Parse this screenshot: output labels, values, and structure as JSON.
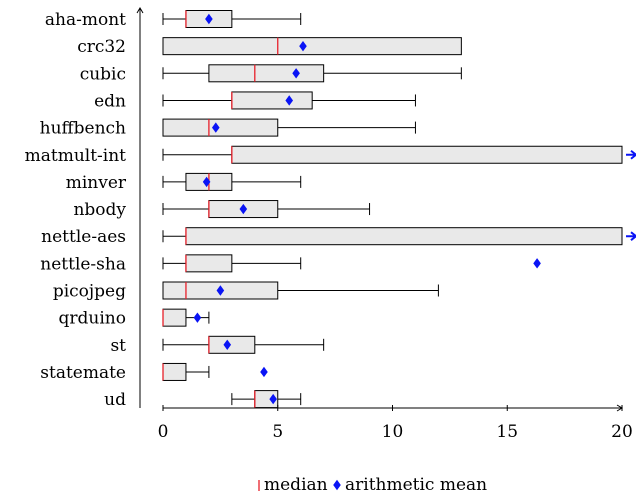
{
  "chart_data": {
    "type": "boxplot",
    "orientation": "horizontal",
    "xlim": [
      0,
      20
    ],
    "xticks": [
      0,
      5,
      10,
      15,
      20
    ],
    "legend": {
      "position": "bottom-center",
      "median_label": "median",
      "mean_label": "arithmetic mean",
      "median_color": "#e8202a",
      "mean_color": "#0a14f5"
    },
    "series": [
      {
        "name": "aha-mont",
        "min": 0,
        "q1": 1,
        "median": 1,
        "q3": 3,
        "max": 6,
        "mean": 2.0
      },
      {
        "name": "crc32",
        "min": 0,
        "q1": 0,
        "median": 5,
        "q3": 13,
        "max": 13,
        "mean": 6.1
      },
      {
        "name": "cubic",
        "min": 0,
        "q1": 2,
        "median": 4,
        "q3": 7,
        "max": 13,
        "mean": 5.8
      },
      {
        "name": "edn",
        "min": 0,
        "q1": 3,
        "median": 3,
        "q3": 6.5,
        "max": 11,
        "mean": 5.5
      },
      {
        "name": "huffbench",
        "min": 0,
        "q1": 0,
        "median": 2,
        "q3": 5,
        "max": 11,
        "mean": 2.3
      },
      {
        "name": "matmult-int",
        "min": 0,
        "q1": 3,
        "median": 3,
        "q3": 20,
        "max": 20,
        "mean": null,
        "mean_beyond_axis": true
      },
      {
        "name": "minver",
        "min": 0,
        "q1": 1,
        "median": 2,
        "q3": 3,
        "max": 6,
        "mean": 1.9
      },
      {
        "name": "nbody",
        "min": 0,
        "q1": 2,
        "median": 2,
        "q3": 5,
        "max": 9,
        "mean": 3.5
      },
      {
        "name": "nettle-aes",
        "min": 0,
        "q1": 1,
        "median": 1,
        "q3": 20,
        "max": 20,
        "mean": null,
        "mean_beyond_axis": true
      },
      {
        "name": "nettle-sha",
        "min": 0,
        "q1": 1,
        "median": 1,
        "q3": 3,
        "max": 6,
        "mean": 16.3
      },
      {
        "name": "picojpeg",
        "min": 0,
        "q1": 0,
        "median": 1,
        "q3": 5,
        "max": 12,
        "mean": 2.5
      },
      {
        "name": "qrduino",
        "min": 0,
        "q1": 0,
        "median": 0,
        "q3": 1,
        "max": 2,
        "mean": 1.5
      },
      {
        "name": "st",
        "min": 0,
        "q1": 2,
        "median": 2,
        "q3": 4,
        "max": 7,
        "mean": 2.8
      },
      {
        "name": "statemate",
        "min": 0,
        "q1": 0,
        "median": 0,
        "q3": 1,
        "max": 2,
        "mean": 4.4
      },
      {
        "name": "ud",
        "min": 3,
        "q1": 4,
        "median": 4,
        "q3": 5,
        "max": 6,
        "mean": 4.8
      }
    ]
  }
}
